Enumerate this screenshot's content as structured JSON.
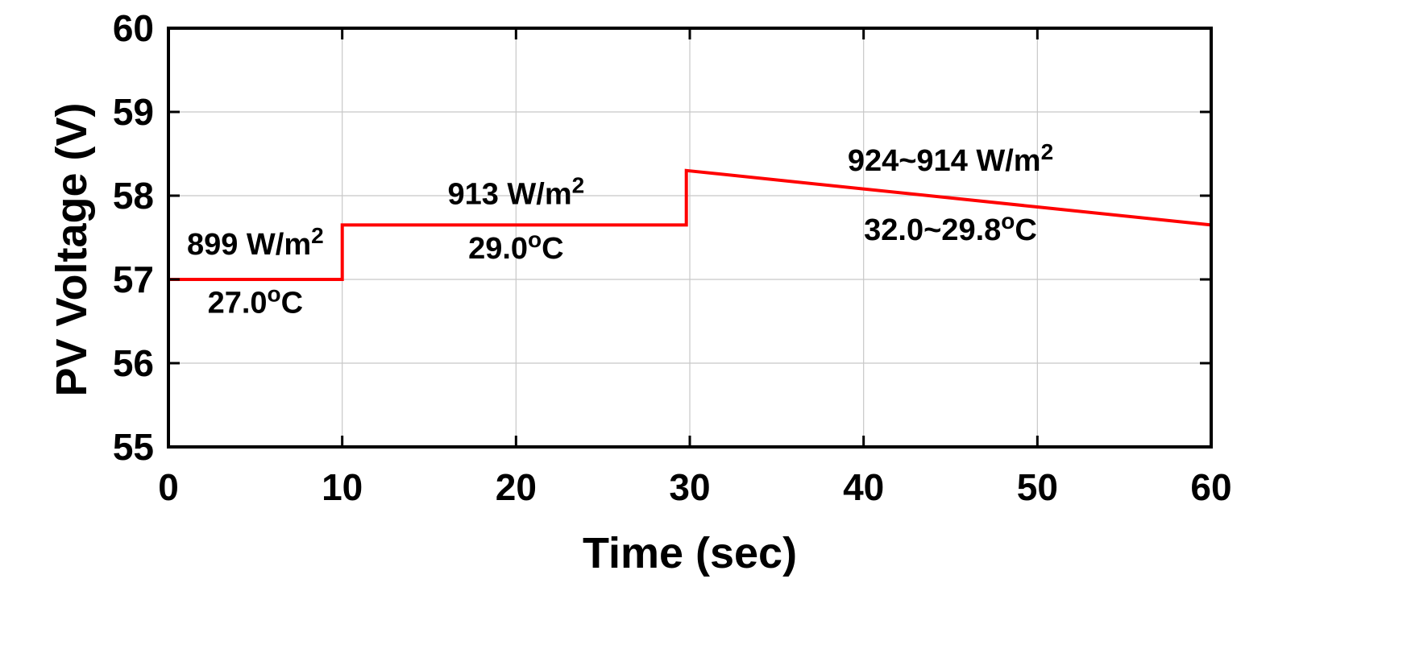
{
  "chart_data": {
    "type": "line",
    "title": "",
    "xlabel": "Time (sec)",
    "ylabel": "PV Voltage (V)",
    "xlim": [
      0,
      60
    ],
    "ylim": [
      55,
      60
    ],
    "xticks": [
      0,
      10,
      20,
      30,
      40,
      50,
      60
    ],
    "yticks": [
      55,
      56,
      57,
      58,
      59,
      60
    ],
    "grid": true,
    "series": [
      {
        "color": "#ff0000",
        "x": [
          0,
          10,
          10,
          29.8,
          29.8,
          60
        ],
        "y": [
          57.0,
          57.0,
          57.65,
          57.65,
          58.3,
          57.65
        ]
      }
    ],
    "annotations": [
      {
        "text": "899 W/m",
        "sup": "2",
        "x": 5,
        "y": 57.3
      },
      {
        "text": "27.0",
        "sup": "o",
        "suffix": "C",
        "x": 5,
        "y": 56.6
      },
      {
        "text": "913 W/m",
        "sup": "2",
        "x": 20,
        "y": 57.9
      },
      {
        "text": "29.0",
        "sup": "o",
        "suffix": "C",
        "x": 20,
        "y": 57.25
      },
      {
        "text": "924~914 W/m",
        "sup": "2",
        "x": 45,
        "y": 58.3
      },
      {
        "text": "32.0~29.8",
        "sup": "o",
        "suffix": "C",
        "x": 45,
        "y": 57.47
      }
    ]
  }
}
